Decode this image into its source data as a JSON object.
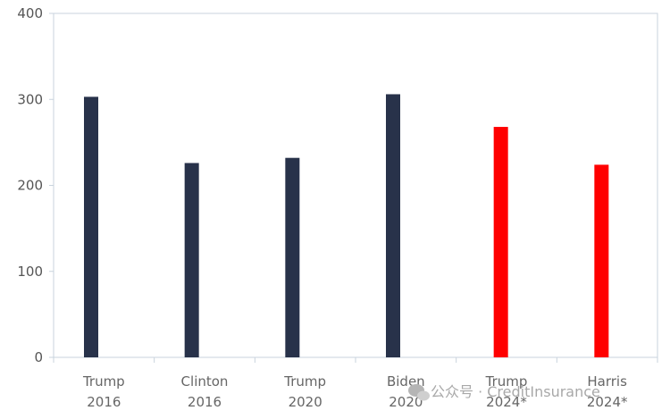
{
  "chart_data": {
    "type": "bar",
    "categories": [
      [
        "Trump",
        "2016"
      ],
      [
        "Clinton",
        "2016"
      ],
      [
        "Trump",
        "2020"
      ],
      [
        "Biden",
        "2020"
      ],
      [
        "Trump",
        "2024*"
      ],
      [
        "Harris",
        "2024*"
      ]
    ],
    "values": [
      303,
      226,
      232,
      306,
      268,
      224
    ],
    "bar_colors": [
      "#28324a",
      "#28324a",
      "#28324a",
      "#28324a",
      "#ff0000",
      "#ff0000"
    ],
    "ylim": [
      0,
      400
    ],
    "yticks": [
      0,
      100,
      200,
      300,
      400
    ],
    "grid": false
  },
  "watermark": {
    "text": "公众号 · CreditInsurance"
  }
}
